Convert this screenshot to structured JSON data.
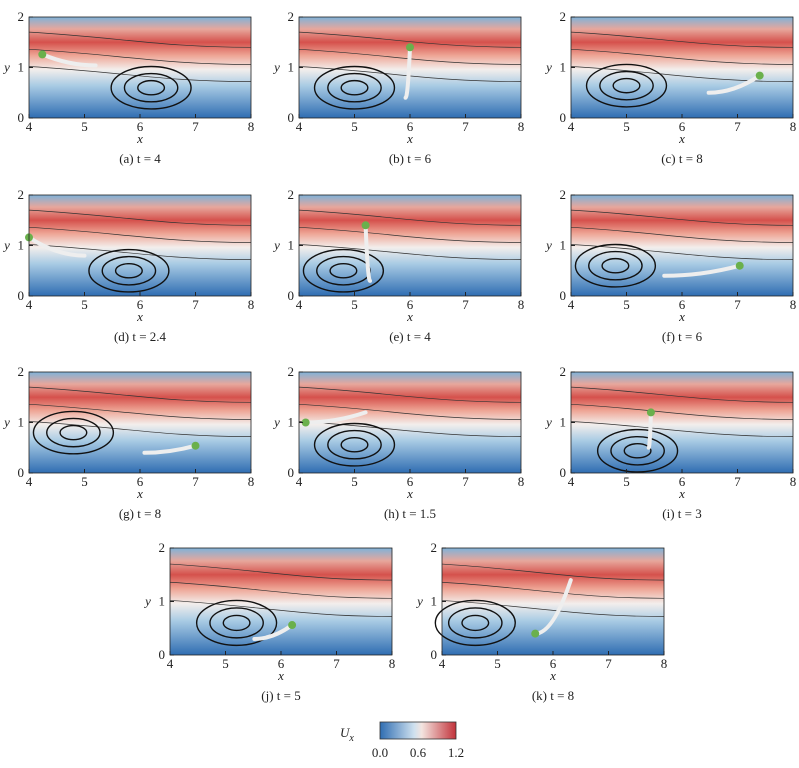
{
  "axes": {
    "xlabel": "x",
    "ylabel": "y",
    "xticks": [
      "4",
      "5",
      "6",
      "7",
      "8"
    ],
    "yticks": [
      "0",
      "1",
      "2"
    ]
  },
  "panels": [
    {
      "caption": "(a) t = 4"
    },
    {
      "caption": "(b) t = 6"
    },
    {
      "caption": "(c) t = 8"
    },
    {
      "caption": "(d) t = 2.4"
    },
    {
      "caption": "(e) t = 4"
    },
    {
      "caption": "(f) t = 6"
    },
    {
      "caption": "(g) t = 8"
    },
    {
      "caption": "(h) t = 1.5"
    },
    {
      "caption": "(i) t = 3"
    },
    {
      "caption": "(j) t = 5"
    },
    {
      "caption": "(k) t = 8"
    }
  ],
  "colorbar": {
    "symbol": "U",
    "subscript": "x",
    "ticks": [
      "0.0",
      "0.6",
      "1.2"
    ]
  }
}
